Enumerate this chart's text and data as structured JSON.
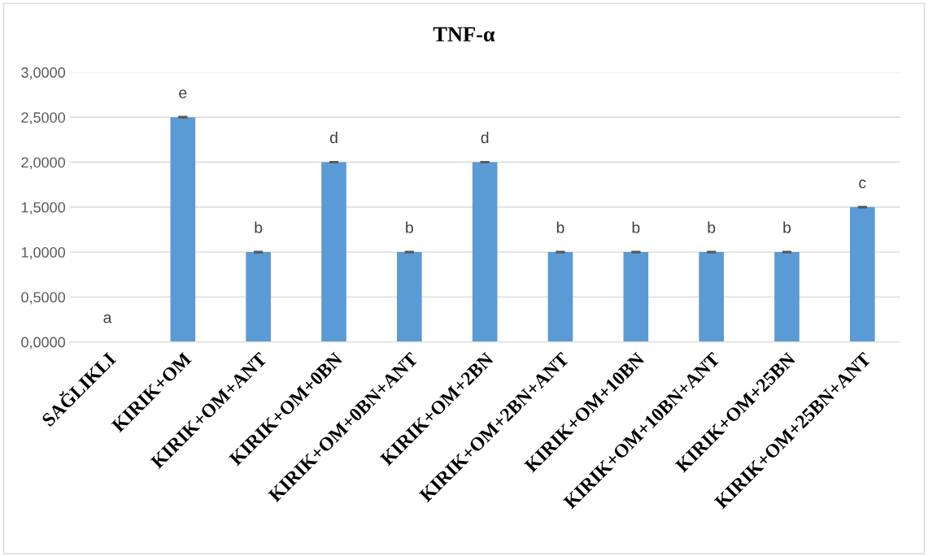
{
  "chart_data": {
    "type": "bar",
    "title": "TNF-α",
    "categories": [
      "SAĞLIKLI",
      "KIRIK+OM",
      "KIRIK+OM+ANT",
      "KIRIK+OM+0BN",
      "KIRIK+OM+0BN+ANT",
      "KIRIK+OM+2BN",
      "KIRIK+OM+2BN+ANT",
      "KIRIK+OM+10BN",
      "KIRIK+OM+10BN+ANT",
      "KIRIK+OM+25BN",
      "KIRIK+OM+25BN+ANT"
    ],
    "values": [
      0,
      2.5,
      1,
      2,
      1,
      2,
      1,
      1,
      1,
      1,
      1.5
    ],
    "errors": [
      null,
      0.005,
      0.005,
      0.005,
      0.005,
      0.005,
      0.005,
      0.005,
      0.005,
      0.005,
      0.005
    ],
    "color": "#5b9bd5",
    "ylim": [
      0,
      3
    ],
    "yticks": [
      {
        "value": 0,
        "label": "0,0000"
      },
      {
        "value": 0.5,
        "label": "0,5000"
      },
      {
        "value": 1,
        "label": "1,0000"
      },
      {
        "value": 1.5,
        "label": "1,5000"
      },
      {
        "value": 2,
        "label": "2,0000"
      },
      {
        "value": 2.5,
        "label": "2,5000"
      },
      {
        "value": 3,
        "label": "3,0000"
      }
    ],
    "grid": "y",
    "annotations": [
      {
        "text": "a",
        "x": "SAĞLIKLI",
        "y": 0
      },
      {
        "text": "e",
        "x": "KIRIK+OM",
        "y": 2.5
      },
      {
        "text": "b",
        "x": "KIRIK+OM+ANT",
        "y": 1
      },
      {
        "text": "d",
        "x": "KIRIK+OM+0BN",
        "y": 2
      },
      {
        "text": "b",
        "x": "KIRIK+OM+0BN+ANT",
        "y": 1
      },
      {
        "text": "d",
        "x": "KIRIK+OM+2BN",
        "y": 2
      },
      {
        "text": "b",
        "x": "KIRIK+OM+2BN+ANT",
        "y": 1
      },
      {
        "text": "b",
        "x": "KIRIK+OM+10BN",
        "y": 1
      },
      {
        "text": "b",
        "x": "KIRIK+OM+10BN+ANT",
        "y": 1
      },
      {
        "text": "b",
        "x": "KIRIK+OM+25BN",
        "y": 1
      },
      {
        "text": "c",
        "x": "KIRIK+OM+25BN+ANT",
        "y": 1.5
      }
    ]
  }
}
